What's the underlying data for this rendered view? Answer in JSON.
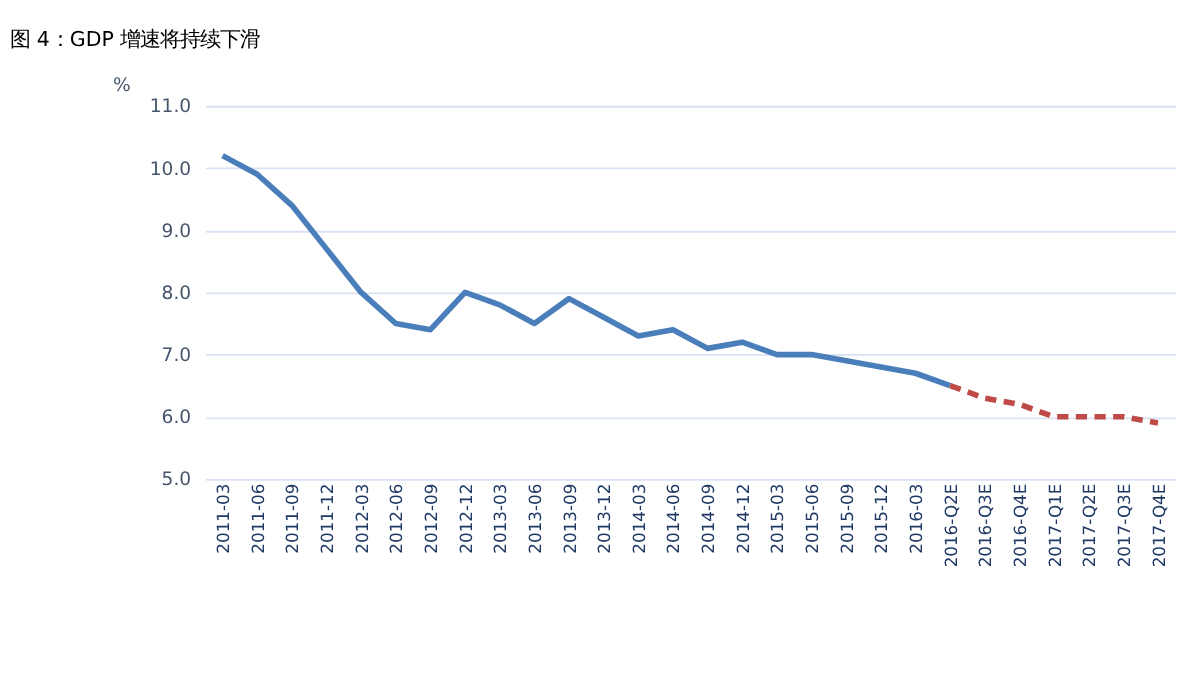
{
  "chart_data": {
    "type": "line",
    "title": "图 4：GDP 增速将持续下滑",
    "ylabel": "%",
    "categories": [
      "2011-03",
      "2011-06",
      "2011-09",
      "2011-12",
      "2012-03",
      "2012-06",
      "2012-09",
      "2012-12",
      "2013-03",
      "2013-06",
      "2013-09",
      "2013-12",
      "2014-03",
      "2014-06",
      "2014-09",
      "2014-12",
      "2015-03",
      "2015-06",
      "2015-09",
      "2015-12",
      "2016-03",
      "2016-Q2E",
      "2016-Q3E",
      "2016-Q4E",
      "2017-Q1E",
      "2017-Q2E",
      "2017-Q3E",
      "2017-Q4E"
    ],
    "series": [
      {
        "color": "#4a7ebb",
        "line_style": "solid",
        "values": [
          10.2,
          9.9,
          9.4,
          8.7,
          8.0,
          7.5,
          7.4,
          8.0,
          7.8,
          7.5,
          7.9,
          7.6,
          7.3,
          7.4,
          7.1,
          7.2,
          7.0,
          7.0,
          6.9,
          6.8,
          6.7,
          6.5,
          null,
          null,
          null,
          null,
          null,
          null
        ]
      },
      {
        "color": "#be4b48",
        "line_style": "dashed",
        "values": [
          null,
          null,
          null,
          null,
          null,
          null,
          null,
          null,
          null,
          null,
          null,
          null,
          null,
          null,
          null,
          null,
          null,
          null,
          null,
          null,
          null,
          6.5,
          6.3,
          6.2,
          6.0,
          6.0,
          6.0,
          5.9
        ]
      }
    ],
    "ylim": [
      5.0,
      11.0
    ],
    "yticks": [
      {
        "value": 5,
        "label": "5.0"
      },
      {
        "value": 6,
        "label": "6.0"
      },
      {
        "value": 7,
        "label": "7.0"
      },
      {
        "value": 8,
        "label": "8.0"
      },
      {
        "value": 9,
        "label": "9.0"
      },
      {
        "value": 10,
        "label": "10.0"
      },
      {
        "value": 11,
        "label": "11.0"
      }
    ],
    "grid": "y"
  }
}
